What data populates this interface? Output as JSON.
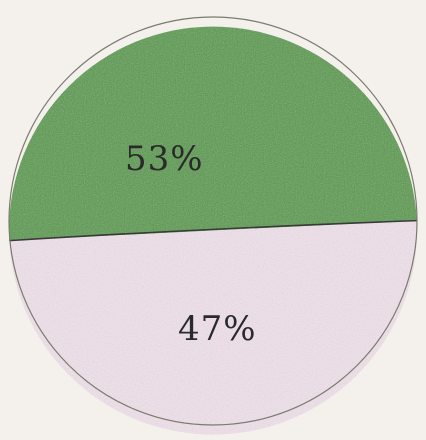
{
  "chart_data": {
    "type": "pie",
    "slices": [
      {
        "label": "53%",
        "value": 53,
        "color": "#4f9a3c"
      },
      {
        "label": "47%",
        "value": 47,
        "color": "#f2e3ec"
      }
    ],
    "legend": "none"
  }
}
